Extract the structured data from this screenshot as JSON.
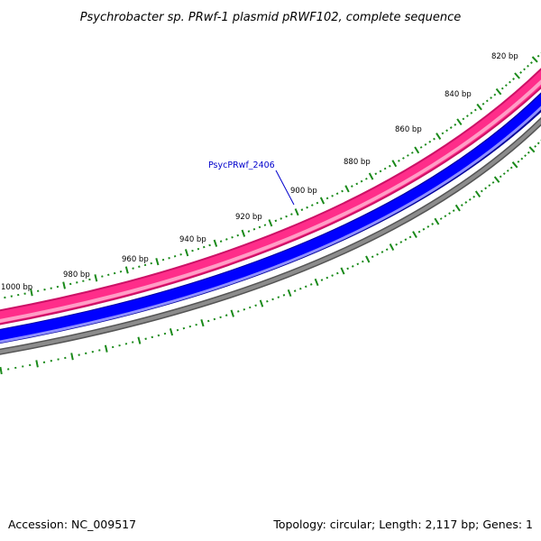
{
  "title": "Psychrobacter sp. PRwf-1 plasmid pRWF102, complete sequence",
  "footer": {
    "accession": "Accession: NC_009517",
    "summary": "Topology: circular; Length: 2,117 bp; Genes: 1"
  },
  "map": {
    "topology": "circular",
    "length_bp": 2117,
    "visible_tick_labels": [
      "820 bp",
      "840 bp",
      "860 bp",
      "880 bp",
      "900 bp",
      "920 bp",
      "940 bp",
      "960 bp",
      "980 bp",
      "1000 bp"
    ],
    "gene_label": {
      "text": "PsycPRwf_2406",
      "color": "#0000cc"
    },
    "track_colors": {
      "ticks": "#1a8a1a",
      "feature_outer": "#cc1166",
      "feature_main": "#ff2d8a",
      "feature_light": "#ff9ec6",
      "backbone_outer": "#00009a",
      "backbone_main": "#0000ff",
      "backbone_light": "#8f8fff",
      "ring_outer": "#555555",
      "ring_main": "#8c8c8c"
    }
  }
}
